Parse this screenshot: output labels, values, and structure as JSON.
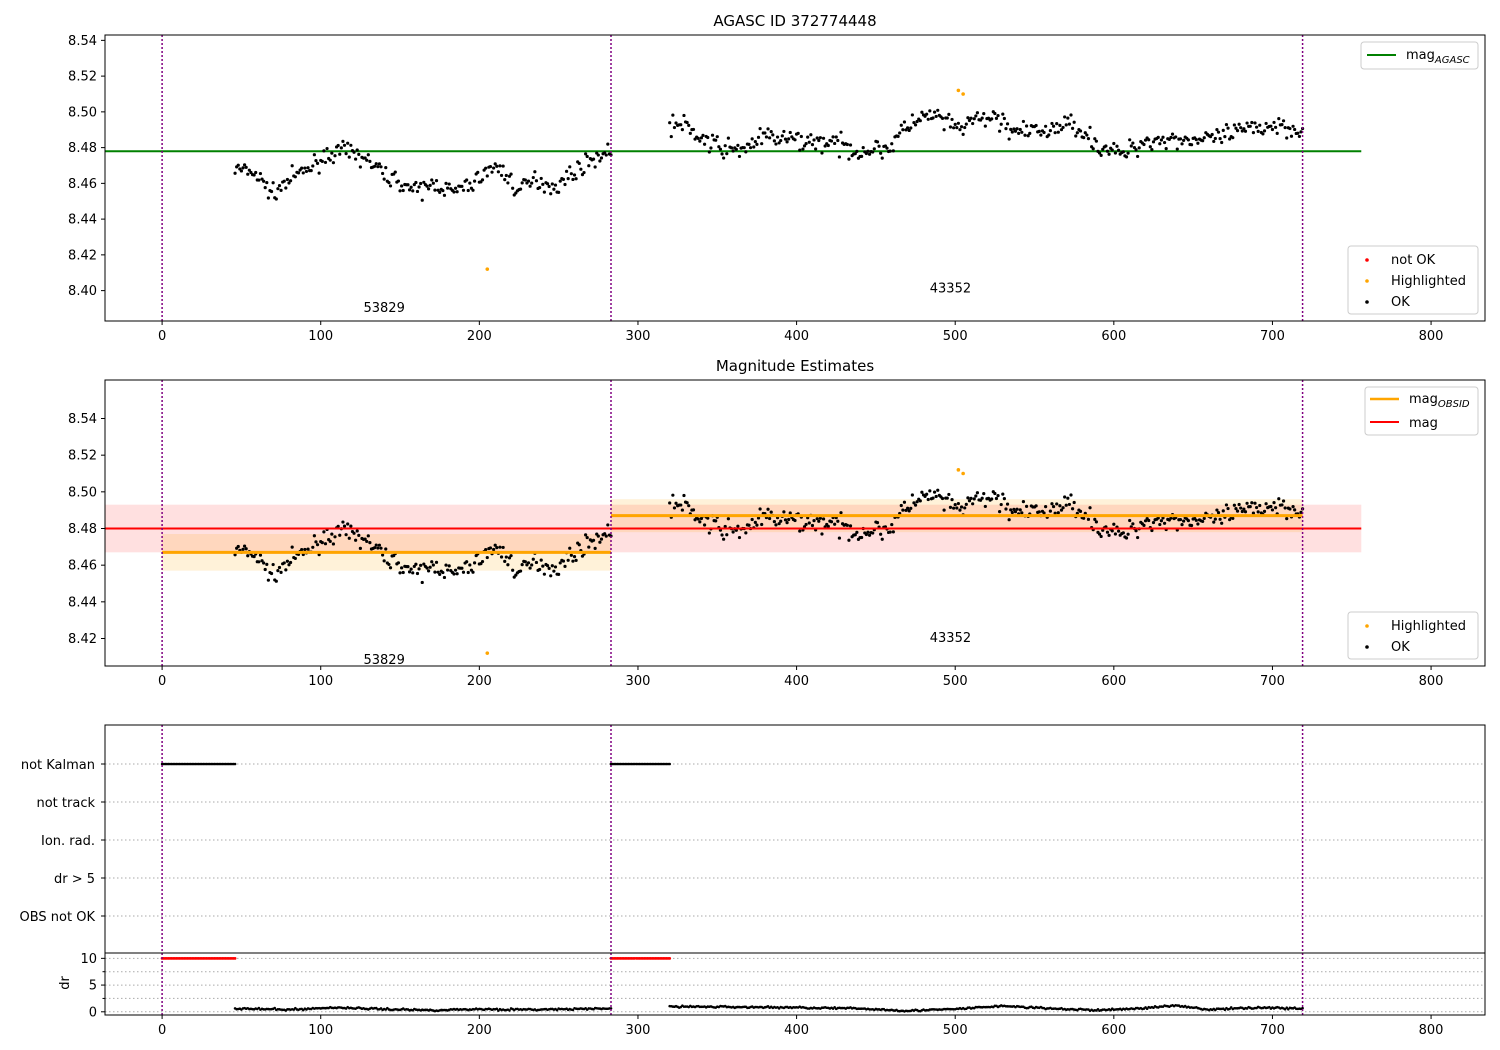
{
  "figure": {
    "colors": {
      "ok": "#000000",
      "highlighted": "#ffa500",
      "not_ok": "#ff0000",
      "mag_agasc": "#008000",
      "mag": "#ff0000",
      "mag_obsid": "#ffa500",
      "obs_divider": "#800080",
      "grid": "#aaaaaa"
    },
    "obsids": [
      {
        "label": "53829",
        "x_start": 0,
        "x_end": 283
      },
      {
        "label": "43352",
        "x_start": 283,
        "x_end": 719
      }
    ]
  },
  "chart_data": [
    {
      "type": "scatter",
      "title": "AGASC ID 372774448",
      "xlim": [
        -36,
        834
      ],
      "ylim": [
        8.383,
        8.543
      ],
      "xticks": [
        0,
        100,
        200,
        300,
        400,
        500,
        600,
        700,
        800
      ],
      "yticks": [
        8.4,
        8.42,
        8.44,
        8.46,
        8.48,
        8.5,
        8.52,
        8.54
      ],
      "ytick_labels": [
        "8.40",
        "8.42",
        "8.44",
        "8.46",
        "8.48",
        "8.50",
        "8.52",
        "8.54"
      ],
      "obsid_labels": [
        {
          "text": "53829",
          "x": 140,
          "y": 8.388
        },
        {
          "text": "43352",
          "x": 497,
          "y": 8.399
        }
      ],
      "lines": [
        {
          "name": "mag_AGASC",
          "y": 8.478,
          "x_range": [
            -36,
            756
          ],
          "color": "#008000"
        }
      ],
      "legend_top": {
        "position": "upper right",
        "entries": [
          {
            "base": "mag",
            "sub": "AGASC",
            "color": "#008000"
          }
        ]
      },
      "legend_bottom": {
        "position": "lower right",
        "entries": [
          {
            "label": "not OK",
            "color": "#ff0000"
          },
          {
            "label": "Highlighted",
            "color": "#ffa500"
          },
          {
            "label": "OK",
            "color": "#000000"
          }
        ]
      },
      "series": [
        {
          "name": "OK",
          "segments": [
            {
              "x_range": [
                46,
                283
              ],
              "anchors": [
                [
                  46,
                  8.468
                ],
                [
                  58,
                  8.466
                ],
                [
                  70,
                  8.454
                ],
                [
                  80,
                  8.462
                ],
                [
                  92,
                  8.468
                ],
                [
                  104,
                  8.476
                ],
                [
                  116,
                  8.478
                ],
                [
                  128,
                  8.474
                ],
                [
                  140,
                  8.465
                ],
                [
                  152,
                  8.46
                ],
                [
                  160,
                  8.455
                ],
                [
                  172,
                  8.46
                ],
                [
                  184,
                  8.455
                ],
                [
                  196,
                  8.46
                ],
                [
                  206,
                  8.468
                ],
                [
                  214,
                  8.468
                ],
                [
                  224,
                  8.456
                ],
                [
                  236,
                  8.462
                ],
                [
                  248,
                  8.458
                ],
                [
                  262,
                  8.468
                ],
                [
                  272,
                  8.474
                ],
                [
                  283,
                  8.478
                ]
              ],
              "scatter": 0.006
            },
            {
              "x_range": [
                320,
                719
              ],
              "anchors": [
                [
                  320,
                  8.493
                ],
                [
                  330,
                  8.492
                ],
                [
                  345,
                  8.482
                ],
                [
                  362,
                  8.478
                ],
                [
                  380,
                  8.486
                ],
                [
                  400,
                  8.484
                ],
                [
                  420,
                  8.483
                ],
                [
                  440,
                  8.478
                ],
                [
                  458,
                  8.48
                ],
                [
                  472,
                  8.494
                ],
                [
                  488,
                  8.498
                ],
                [
                  500,
                  8.49
                ],
                [
                  512,
                  8.495
                ],
                [
                  525,
                  8.497
                ],
                [
                  540,
                  8.488
                ],
                [
                  560,
                  8.49
                ],
                [
                  575,
                  8.494
                ],
                [
                  590,
                  8.481
                ],
                [
                  605,
                  8.476
                ],
                [
                  620,
                  8.484
                ],
                [
                  640,
                  8.485
                ],
                [
                  660,
                  8.484
                ],
                [
                  680,
                  8.489
                ],
                [
                  700,
                  8.493
                ],
                [
                  719,
                  8.49
                ]
              ],
              "scatter": 0.007
            }
          ]
        },
        {
          "name": "Highlighted",
          "points": [
            [
              205,
              8.412
            ],
            [
              502,
              8.512
            ],
            [
              505,
              8.51
            ]
          ]
        },
        {
          "name": "not OK",
          "points": []
        }
      ]
    },
    {
      "type": "scatter",
      "title": "Magnitude Estimates",
      "xlim": [
        -36,
        834
      ],
      "ylim": [
        8.405,
        8.561
      ],
      "xticks": [
        0,
        100,
        200,
        300,
        400,
        500,
        600,
        700,
        800
      ],
      "yticks": [
        8.42,
        8.44,
        8.46,
        8.48,
        8.5,
        8.52,
        8.54
      ],
      "ytick_labels": [
        "8.42",
        "8.44",
        "8.46",
        "8.48",
        "8.50",
        "8.52",
        "8.54"
      ],
      "obsid_labels": [
        {
          "text": "53829",
          "x": 140,
          "y": 8.406
        },
        {
          "text": "43352",
          "x": 497,
          "y": 8.418
        }
      ],
      "lines": [
        {
          "name": "mag",
          "y": 8.48,
          "x_range": [
            -36,
            756
          ],
          "color": "#ff0000",
          "band": [
            8.467,
            8.493
          ]
        },
        {
          "name": "mag_OBSID",
          "y": 8.467,
          "x_range": [
            0,
            283
          ],
          "color": "#ffa500",
          "band": [
            8.457,
            8.477
          ]
        },
        {
          "name": "mag_OBSID",
          "y": 8.487,
          "x_range": [
            283,
            719
          ],
          "color": "#ffa500",
          "band": [
            8.478,
            8.496
          ]
        }
      ],
      "legend_top": {
        "position": "upper right",
        "entries": [
          {
            "base": "mag",
            "sub": "OBSID",
            "color": "#ffa500"
          },
          {
            "base": "mag",
            "sub": "",
            "color": "#ff0000"
          }
        ]
      },
      "legend_bottom": {
        "position": "lower right",
        "entries": [
          {
            "label": "Highlighted",
            "color": "#ffa500"
          },
          {
            "label": "OK",
            "color": "#000000"
          }
        ]
      },
      "series": [
        {
          "name": "OK",
          "same_as_panel": 0
        },
        {
          "name": "Highlighted",
          "points": [
            [
              205,
              8.412
            ],
            [
              502,
              8.512
            ],
            [
              505,
              8.51
            ]
          ]
        }
      ]
    },
    {
      "type": "scatter",
      "title": "",
      "xlim": [
        -36,
        834
      ],
      "flag_rows": [
        "not Kalman",
        "not track",
        "Ion. rad.",
        "dr > 5",
        "OBS not OK"
      ],
      "flag_segments": [
        {
          "row": "not Kalman",
          "x_range": [
            0,
            46
          ]
        },
        {
          "row": "not Kalman",
          "x_range": [
            283,
            320
          ]
        }
      ],
      "dr": {
        "ylabel": "dr",
        "ylim": [
          -0.6,
          11.0
        ],
        "yticks": [
          0,
          5,
          10
        ],
        "minor_yticks": [
          2.5,
          7.5
        ],
        "clipped_value": 10,
        "clipped_segments": [
          [
            0,
            46
          ],
          [
            283,
            320
          ]
        ],
        "segments": [
          {
            "x_range": [
              46,
              283
            ],
            "anchors": [
              [
                46,
                0.6
              ],
              [
                80,
                0.4
              ],
              [
                110,
                0.8
              ],
              [
                140,
                0.5
              ],
              [
                170,
                0.3
              ],
              [
                200,
                0.5
              ],
              [
                230,
                0.4
              ],
              [
                260,
                0.5
              ],
              [
                283,
                0.6
              ]
            ]
          },
          {
            "x_range": [
              320,
              719
            ],
            "anchors": [
              [
                320,
                1.0
              ],
              [
                360,
                0.9
              ],
              [
                400,
                0.8
              ],
              [
                440,
                0.6
              ],
              [
                470,
                0.2
              ],
              [
                500,
                0.5
              ],
              [
                530,
                1.1
              ],
              [
                560,
                0.6
              ],
              [
                590,
                0.3
              ],
              [
                620,
                0.7
              ],
              [
                640,
                1.2
              ],
              [
                660,
                0.4
              ],
              [
                690,
                0.8
              ],
              [
                719,
                0.6
              ]
            ]
          }
        ]
      }
    }
  ]
}
